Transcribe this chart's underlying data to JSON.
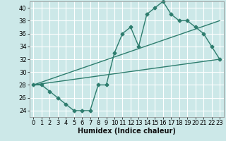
{
  "bg_color": "#cce8e8",
  "grid_color": "#ffffff",
  "line_color": "#2e7d6e",
  "marker": "D",
  "markersize": 2.5,
  "linewidth": 1.0,
  "xlabel": "Humidex (Indice chaleur)",
  "xlabel_fontsize": 7,
  "tick_fontsize": 6,
  "xlim": [
    -0.5,
    23.5
  ],
  "ylim": [
    23,
    41
  ],
  "yticks": [
    24,
    26,
    28,
    30,
    32,
    34,
    36,
    38,
    40
  ],
  "xticks": [
    0,
    1,
    2,
    3,
    4,
    5,
    6,
    7,
    8,
    9,
    10,
    11,
    12,
    13,
    14,
    15,
    16,
    17,
    18,
    19,
    20,
    21,
    22,
    23
  ],
  "line1_x": [
    0,
    1,
    2,
    3,
    4,
    5,
    6,
    7,
    8,
    9,
    10,
    11,
    12,
    13,
    14,
    15,
    16,
    17,
    18,
    19,
    20,
    21,
    22,
    23
  ],
  "line1_y": [
    28,
    28,
    27,
    26,
    25,
    24,
    24,
    24,
    28,
    28,
    33,
    36,
    37,
    34,
    39,
    40,
    41,
    39,
    38,
    38,
    37,
    36,
    34,
    32
  ],
  "line2_x": [
    0,
    23
  ],
  "line2_y": [
    28,
    32
  ],
  "line3_x": [
    0,
    23
  ],
  "line3_y": [
    28,
    38
  ]
}
